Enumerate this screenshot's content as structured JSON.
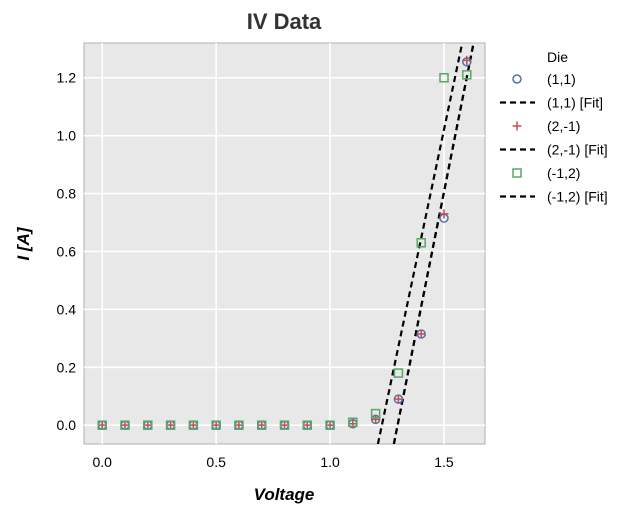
{
  "chart_data": {
    "type": "scatter",
    "title": "IV Data",
    "xlabel": "Voltage",
    "ylabel": "I [A]",
    "xlim": [
      -0.08,
      1.68
    ],
    "ylim": [
      -0.065,
      1.32
    ],
    "xticks": [
      0.0,
      0.5,
      1.0,
      1.5
    ],
    "xtick_labels": [
      "0.0",
      "0.5",
      "1.0",
      "1.5"
    ],
    "yticks": [
      0.0,
      0.2,
      0.4,
      0.6,
      0.8,
      1.0,
      1.2
    ],
    "ytick_labels": [
      "0.0",
      "0.2",
      "0.4",
      "0.6",
      "0.8",
      "1.0",
      "1.2"
    ],
    "grid": true,
    "background": "#e8e8e8",
    "legend_title": "Die",
    "legend_position": "outside-right",
    "series": [
      {
        "name": "(1,1)",
        "kind": "scatter",
        "marker": "circle",
        "color": "#4c72b0",
        "x": [
          0.0,
          0.1,
          0.2,
          0.3,
          0.4,
          0.5,
          0.6,
          0.7,
          0.8,
          0.9,
          1.0,
          1.1,
          1.2,
          1.3,
          1.4,
          1.5,
          1.6
        ],
        "y": [
          0.0,
          0.0,
          0.0,
          0.0,
          0.0,
          0.0,
          0.0,
          0.0,
          0.0,
          0.0,
          0.0,
          0.005,
          0.02,
          0.09,
          0.315,
          0.715,
          1.255
        ]
      },
      {
        "name": "(1,1) [Fit]",
        "kind": "line",
        "style": "dashed",
        "color": "#000000",
        "x": [
          1.28,
          1.63
        ],
        "y": [
          -0.065,
          1.32
        ]
      },
      {
        "name": "(2,-1)",
        "kind": "scatter",
        "marker": "plus",
        "color": "#c44e52",
        "x": [
          0.0,
          0.1,
          0.2,
          0.3,
          0.4,
          0.5,
          0.6,
          0.7,
          0.8,
          0.9,
          1.0,
          1.1,
          1.2,
          1.3,
          1.4,
          1.5,
          1.6
        ],
        "y": [
          0.0,
          0.0,
          0.0,
          0.0,
          0.0,
          0.0,
          0.0,
          0.0,
          0.0,
          0.0,
          0.0,
          0.005,
          0.02,
          0.09,
          0.315,
          0.73,
          1.26
        ]
      },
      {
        "name": "(2,-1) [Fit]",
        "kind": "line",
        "style": "dashed",
        "color": "#000000",
        "x": [
          1.28,
          1.63
        ],
        "y": [
          -0.065,
          1.32
        ]
      },
      {
        "name": "(-1,2)",
        "kind": "scatter",
        "marker": "square",
        "color": "#55a868",
        "x": [
          0.0,
          0.1,
          0.2,
          0.3,
          0.4,
          0.5,
          0.6,
          0.7,
          0.8,
          0.9,
          1.0,
          1.1,
          1.2,
          1.3,
          1.4,
          1.5,
          1.6
        ],
        "y": [
          0.0,
          0.0,
          0.0,
          0.0,
          0.0,
          0.0,
          0.0,
          0.0,
          0.0,
          0.0,
          0.0,
          0.01,
          0.04,
          0.18,
          0.63,
          1.2,
          1.21
        ]
      },
      {
        "name": "(-1,2) [Fit]",
        "kind": "line",
        "style": "dashed",
        "color": "#000000",
        "x": [
          1.21,
          1.58
        ],
        "y": [
          -0.065,
          1.32
        ]
      }
    ]
  }
}
